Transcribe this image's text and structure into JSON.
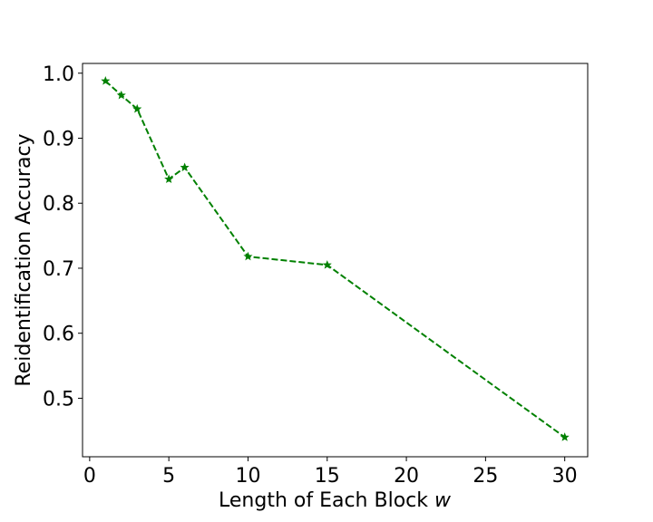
{
  "chart_data": {
    "type": "line",
    "title": "",
    "xlabel": "Length of Each Block ",
    "xlabel_var": "w",
    "ylabel": "Reidentification Accuracy",
    "xlim": [
      -0.45,
      31.45
    ],
    "ylim": [
      0.41,
      1.015
    ],
    "xticks": [
      0,
      5,
      10,
      15,
      20,
      25,
      30
    ],
    "yticks": [
      0.5,
      0.6,
      0.7,
      0.8,
      0.9,
      1.0
    ],
    "xtick_labels": [
      "0",
      "5",
      "10",
      "15",
      "20",
      "25",
      "30"
    ],
    "ytick_labels": [
      "0.5",
      "0.6",
      "0.7",
      "0.8",
      "0.9",
      "1.0"
    ],
    "grid": false,
    "series": [
      {
        "color": "#008000",
        "linestyle": "dashed",
        "marker": "star",
        "x": [
          1,
          2,
          3,
          5,
          6,
          10,
          15,
          30
        ],
        "y": [
          0.988,
          0.966,
          0.945,
          0.837,
          0.855,
          0.718,
          0.705,
          0.44
        ]
      }
    ]
  }
}
